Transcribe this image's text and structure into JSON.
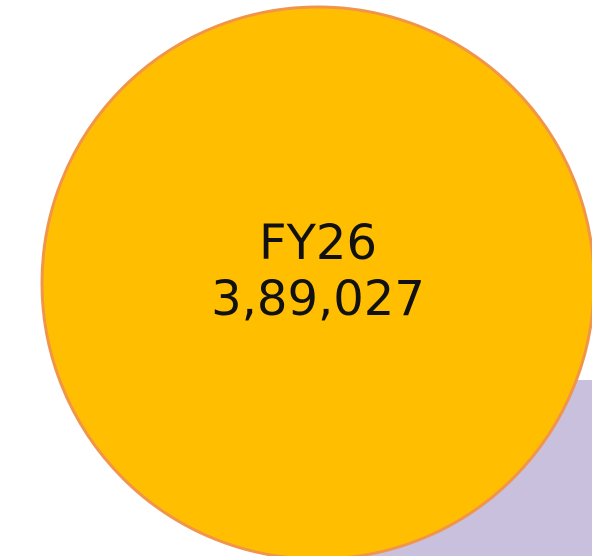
{
  "bubble": {
    "label": "FY26",
    "value": "3,89,027"
  }
}
